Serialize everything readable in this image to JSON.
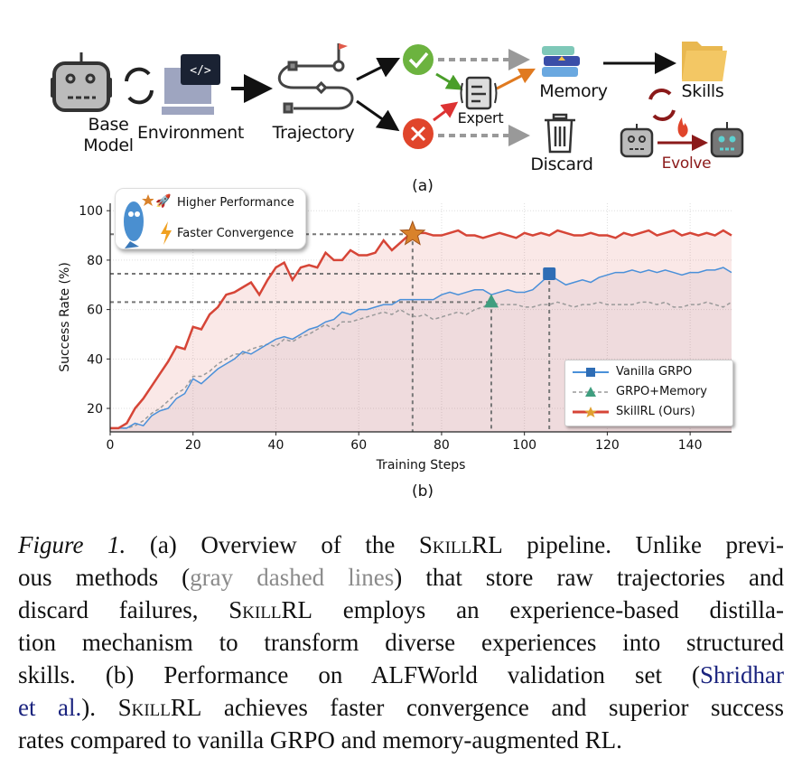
{
  "figure_a": {
    "labels": {
      "base_model_line1": "Base",
      "base_model_line2": "Model",
      "environment": "Environment",
      "trajectory": "Trajectory",
      "expert": "Expert",
      "memory": "Memory",
      "skills": "Skills",
      "discard": "Discard",
      "evolve": "Evolve"
    },
    "sublabel": "(a)",
    "colors": {
      "success": "#6cb33f",
      "failure": "#e0452b",
      "evolve": "#8b1a1a",
      "expert_arrow_orange": "#e07a20"
    }
  },
  "figure_b": {
    "sublabel": "(b)",
    "annotation": {
      "line1": "Higher Performance",
      "line2": "Faster Convergence"
    },
    "chart_data": {
      "type": "line",
      "xlabel": "Training Steps",
      "ylabel": "Success Rate (%)",
      "xlim": [
        0,
        150
      ],
      "ylim": [
        10.5,
        103
      ],
      "xticks": [
        "0",
        "20",
        "40",
        "60",
        "80",
        "100",
        "120",
        "140"
      ],
      "yticks": [
        "20",
        "40",
        "60",
        "80",
        "100"
      ],
      "grid": true,
      "legend_position": "lower-right",
      "x": [
        0,
        2,
        4,
        6,
        8,
        10,
        12,
        14,
        16,
        18,
        20,
        22,
        24,
        26,
        28,
        30,
        32,
        34,
        36,
        38,
        40,
        42,
        44,
        46,
        48,
        50,
        52,
        54,
        56,
        58,
        60,
        62,
        64,
        66,
        68,
        70,
        72,
        74,
        76,
        78,
        80,
        82,
        84,
        86,
        88,
        90,
        92,
        94,
        96,
        98,
        100,
        102,
        104,
        106,
        108,
        110,
        112,
        114,
        116,
        118,
        120,
        122,
        124,
        126,
        128,
        130,
        132,
        134,
        136,
        138,
        140,
        142,
        144,
        146,
        148,
        150
      ],
      "series": [
        {
          "name": "Vanilla GRPO",
          "color": "#4a90d9",
          "marker": "square",
          "marker_color": "#2f6db5",
          "style": "solid",
          "values": [
            12,
            12,
            12,
            14,
            13,
            17,
            19,
            20,
            24,
            26,
            32,
            30,
            33,
            36,
            38,
            40,
            43,
            42,
            44,
            46,
            48,
            49,
            48,
            50,
            52,
            53,
            55,
            56,
            59,
            58,
            60,
            60,
            61,
            62,
            62,
            64,
            64,
            64,
            64,
            64,
            66,
            67,
            66,
            67,
            68,
            68,
            66,
            67,
            68,
            67,
            67,
            68,
            71,
            74,
            72,
            70,
            71,
            72,
            71,
            73,
            74,
            75,
            75,
            76,
            75,
            76,
            75,
            76,
            75,
            74,
            75,
            75,
            76,
            76,
            77,
            75
          ],
          "highlight": {
            "x": 106,
            "y": 74.5
          }
        },
        {
          "name": "GRPO+Memory",
          "color": "#9a9a9a",
          "marker": "triangle",
          "marker_color": "#3f9e7f",
          "style": "dashed",
          "values": [
            12,
            12,
            12,
            13,
            15,
            18,
            20,
            23,
            26,
            28,
            33,
            33,
            35,
            38,
            40,
            42,
            42,
            44,
            45,
            46,
            45,
            48,
            47,
            49,
            50,
            52,
            54,
            52,
            55,
            55,
            56,
            57,
            58,
            59,
            58,
            60,
            58,
            57,
            58,
            56,
            57,
            58,
            59,
            58,
            60,
            61,
            63,
            62,
            62,
            62,
            61,
            61,
            62,
            62,
            63,
            62,
            61,
            62,
            62,
            63,
            62,
            62,
            62,
            62,
            63,
            63,
            62,
            63,
            61,
            61,
            62,
            62,
            63,
            62,
            61,
            63
          ],
          "highlight": {
            "x": 92,
            "y": 63
          }
        },
        {
          "name": "SkillRL (Ours)",
          "color": "#d64537",
          "marker": "star",
          "marker_color": "#d9822b",
          "style": "solid",
          "values": [
            12,
            12,
            14,
            20,
            24,
            29,
            34,
            39,
            45,
            44,
            53,
            52,
            58,
            61,
            66,
            67,
            69,
            71,
            66,
            72,
            77,
            79,
            72,
            77,
            78,
            77,
            83,
            80,
            80,
            84,
            82,
            82,
            83,
            88,
            84,
            87,
            90,
            91,
            91,
            90,
            90,
            91,
            92,
            90,
            90,
            89,
            90,
            91,
            90,
            89,
            91,
            90,
            91,
            90,
            92,
            91,
            90,
            90,
            91,
            90,
            90,
            89,
            91,
            90,
            91,
            92,
            90,
            91,
            92,
            90,
            91,
            90,
            91,
            90,
            92,
            90
          ],
          "highlight": {
            "x": 73,
            "y": 90.5
          }
        }
      ]
    }
  },
  "caption": {
    "lines": [
      [
        {
          "t": "Figure 1.",
          "s": "it"
        },
        {
          "t": " (a) Overview of the "
        },
        {
          "t": "SkillRL",
          "s": "sc"
        },
        {
          "t": " pipeline. Unlike previ-"
        }
      ],
      [
        {
          "t": "ous methods ("
        },
        {
          "t": "gray dashed lines",
          "s": "gray"
        },
        {
          "t": ") that store raw trajectories and"
        }
      ],
      [
        {
          "t": "discard failures, "
        },
        {
          "t": "SkillRL",
          "s": "sc"
        },
        {
          "t": " employs an experience-based distilla-"
        }
      ],
      [
        {
          "t": "tion mechanism to transform diverse experiences into structured"
        }
      ],
      [
        {
          "t": "skills.  (b) Performance on ALFWorld validation set ("
        },
        {
          "t": "Shridhar",
          "s": "blue"
        }
      ],
      [
        {
          "t": "et al.",
          "s": "blue"
        },
        {
          "t": "). "
        },
        {
          "t": "SkillRL",
          "s": "sc"
        },
        {
          "t": " achieves faster convergence and superior success"
        }
      ],
      [
        {
          "t": "rates compared to vanilla GRPO and memory-augmented RL."
        }
      ]
    ]
  }
}
